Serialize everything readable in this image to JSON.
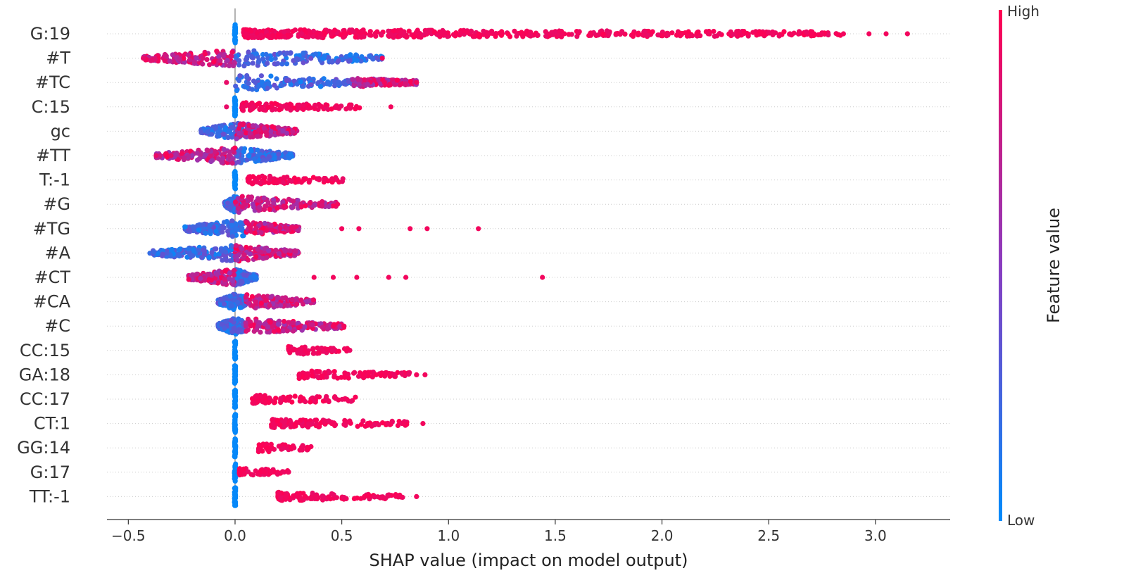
{
  "chart_data": {
    "type": "scatter",
    "subtype": "shap-beeswarm-summary",
    "xlabel": "SHAP value (impact on model output)",
    "xlim": [
      -0.6,
      3.35
    ],
    "xticks": [
      -0.5,
      0.0,
      0.5,
      1.0,
      1.5,
      2.0,
      2.5,
      3.0
    ],
    "xtick_labels": [
      "−0.5",
      "0.0",
      "0.5",
      "1.0",
      "1.5",
      "2.0",
      "2.5",
      "3.0"
    ],
    "grid": "dotted horizontal per feature",
    "colorbar": {
      "label": "Feature value",
      "high_label": "High",
      "low_label": "Low",
      "high_color": "#ff0052",
      "low_color": "#008bfb",
      "placement": "right"
    },
    "features": [
      {
        "name": "G:19",
        "low_range": [
          0.0,
          0.0
        ],
        "high_range": [
          0.04,
          3.16
        ],
        "mix": "split",
        "outliers": [
          0.05,
          0.4,
          0.45,
          2.6,
          2.75,
          2.85,
          2.97,
          3.05,
          3.15
        ]
      },
      {
        "name": "#T",
        "low_range": [
          0.0,
          0.69
        ],
        "high_range": [
          -0.43,
          0.0
        ],
        "mix": "blended",
        "outliers": [
          -0.43,
          0.69
        ]
      },
      {
        "name": "#TC",
        "low_range": [
          0.0,
          0.6
        ],
        "high_range": [
          0.55,
          0.85
        ],
        "mix": "blended",
        "outliers": [
          -0.04,
          0.7,
          0.85
        ]
      },
      {
        "name": "C:15",
        "low_range": [
          0.0,
          0.0
        ],
        "high_range": [
          0.03,
          0.65
        ],
        "mix": "split",
        "outliers": [
          -0.04,
          0.73
        ]
      },
      {
        "name": "gc",
        "low_range": [
          -0.16,
          0.1
        ],
        "high_range": [
          0.0,
          0.29
        ],
        "mix": "blended",
        "outliers": []
      },
      {
        "name": "#TT",
        "low_range": [
          0.0,
          0.27
        ],
        "high_range": [
          -0.37,
          0.0
        ],
        "mix": "blended",
        "outliers": [
          -0.37,
          -0.3
        ]
      },
      {
        "name": "T:-1",
        "low_range": [
          0.0,
          0.0
        ],
        "high_range": [
          0.06,
          0.56
        ],
        "mix": "split",
        "outliers": []
      },
      {
        "name": "#G",
        "low_range": [
          -0.05,
          0.05
        ],
        "high_range": [
          0.0,
          0.48
        ],
        "mix": "blended",
        "outliers": [
          0.48
        ]
      },
      {
        "name": "#TG",
        "low_range": [
          -0.24,
          0.05
        ],
        "high_range": [
          0.05,
          0.3
        ],
        "mix": "blended",
        "outliers": [
          0.5,
          0.58,
          0.82,
          0.9,
          1.14
        ]
      },
      {
        "name": "#A",
        "low_range": [
          -0.4,
          0.0
        ],
        "high_range": [
          0.0,
          0.3
        ],
        "mix": "blended",
        "outliers": []
      },
      {
        "name": "#CT",
        "low_range": [
          0.0,
          0.1
        ],
        "high_range": [
          -0.22,
          0.0
        ],
        "mix": "blended",
        "outliers": [
          0.37,
          0.46,
          0.57,
          0.72,
          0.8,
          1.44
        ]
      },
      {
        "name": "#CA",
        "low_range": [
          -0.08,
          0.05
        ],
        "high_range": [
          0.05,
          0.37
        ],
        "mix": "blended",
        "outliers": []
      },
      {
        "name": "#C",
        "low_range": [
          -0.08,
          0.05
        ],
        "high_range": [
          0.05,
          0.51
        ],
        "mix": "blended",
        "outliers": [
          0.46,
          0.51
        ]
      },
      {
        "name": "CC:15",
        "low_range": [
          0.0,
          0.0
        ],
        "high_range": [
          0.25,
          0.59
        ],
        "mix": "split",
        "outliers": []
      },
      {
        "name": "GA:18",
        "low_range": [
          0.0,
          0.0
        ],
        "high_range": [
          0.3,
          0.89
        ],
        "mix": "split",
        "outliers": [
          0.3,
          0.85,
          0.89
        ]
      },
      {
        "name": "CC:17",
        "low_range": [
          0.0,
          0.0
        ],
        "high_range": [
          0.08,
          0.64
        ],
        "mix": "split",
        "outliers": []
      },
      {
        "name": "CT:1",
        "low_range": [
          0.0,
          0.0
        ],
        "high_range": [
          0.17,
          0.88
        ],
        "mix": "split",
        "outliers": [
          0.79,
          0.88
        ]
      },
      {
        "name": "GG:14",
        "low_range": [
          0.0,
          0.0
        ],
        "high_range": [
          0.11,
          0.4
        ],
        "mix": "split",
        "outliers": []
      },
      {
        "name": "G:17",
        "low_range": [
          0.0,
          0.0
        ],
        "high_range": [
          0.02,
          0.28
        ],
        "mix": "split",
        "outliers": []
      },
      {
        "name": "TT:-1",
        "low_range": [
          0.0,
          0.0
        ],
        "high_range": [
          0.2,
          0.85
        ],
        "mix": "split",
        "outliers": [
          0.77,
          0.85
        ]
      }
    ]
  }
}
